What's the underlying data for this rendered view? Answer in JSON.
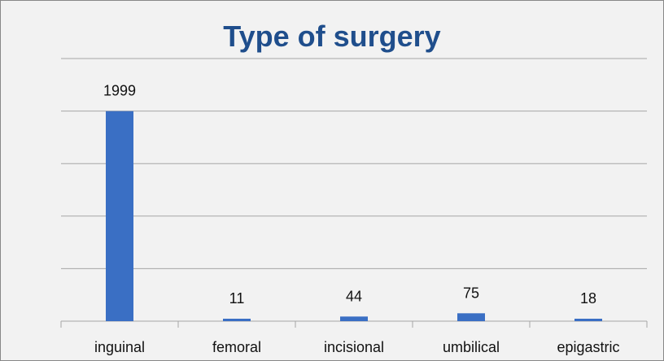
{
  "chart_data": {
    "type": "bar",
    "title": "Type of surgery",
    "categories": [
      "inguinal",
      "femoral",
      "incisional",
      "umbilical",
      "epigastric"
    ],
    "values": [
      1999,
      11,
      44,
      75,
      18
    ],
    "data_labels": [
      "1999",
      "11",
      "44",
      "75",
      "18"
    ],
    "xlabel": "",
    "ylabel": "",
    "ylim": [
      0,
      2500
    ],
    "y_gridlines": [
      500,
      1000,
      1500,
      2000,
      2500
    ],
    "y_tick_labels_shown": false,
    "grid": true,
    "legend": "none",
    "colors": {
      "bar": "#3a6fc4",
      "grid": "#a6a6a6",
      "title": "#1f4e8c",
      "background": "#f2f2f2"
    }
  }
}
